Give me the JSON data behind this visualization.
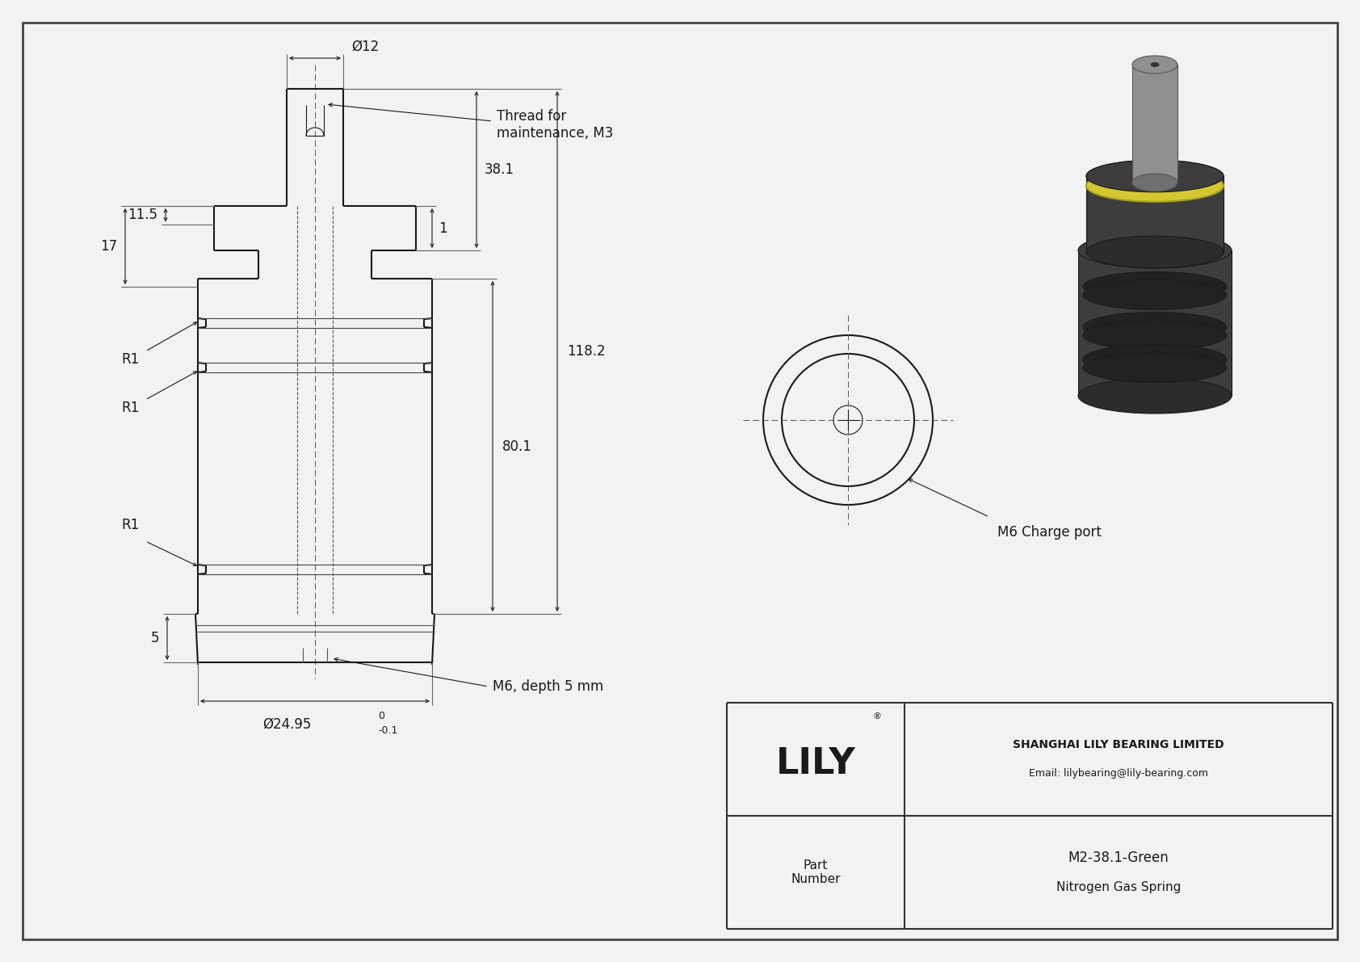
{
  "bg_color": "#f2f2f2",
  "line_color": "#1a1a1a",
  "border_color": "#333333",
  "title_company": "SHANGHAI LILY BEARING LIMITED",
  "title_email": "Email: lilybearing@lily-bearing.com",
  "part_label": "Part\nNumber",
  "part_number": "M2-38.1-Green",
  "part_type": "Nitrogen Gas Spring",
  "lily_brand": "LILY",
  "dim_phi12": "Ø12",
  "dim_11_5": "11.5",
  "dim_17": "17",
  "dim_r1_a": "R1",
  "dim_r1_b": "R1",
  "dim_r1_c": "R1",
  "dim_38_1": "38.1",
  "dim_1": "1",
  "dim_80_1": "80.1",
  "dim_118_2": "118.2",
  "dim_5": "5",
  "dim_0": "0",
  "dim_m_0_1": "-0.1",
  "dim_phi24_95": "Ø24.95",
  "dim_m6_depth": "M6, depth 5 mm",
  "dim_thread": "Thread for\nmaintenance, M3",
  "dim_m6_charge": "M6 Charge port",
  "font_size_dim": 12,
  "font_size_label": 11,
  "font_size_brand": 32,
  "font_size_title": 10,
  "font_size_small": 9
}
